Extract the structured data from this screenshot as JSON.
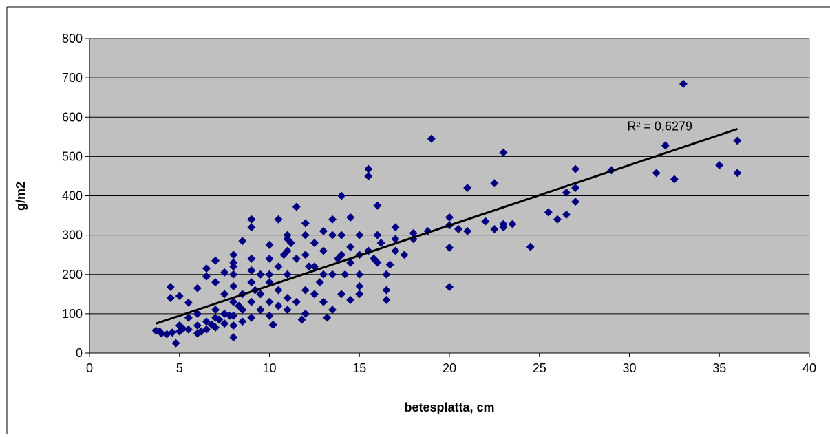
{
  "chart_data": {
    "type": "scatter",
    "xlabel": "betesplatta, cm",
    "ylabel": "g/m2",
    "xlim": [
      0,
      40
    ],
    "ylim": [
      0,
      800
    ],
    "xticks": [
      0,
      5,
      10,
      15,
      20,
      25,
      30,
      35,
      40
    ],
    "yticks": [
      0,
      100,
      200,
      300,
      400,
      500,
      600,
      700,
      800
    ],
    "grid": true,
    "color": "#000080",
    "background": "#c0c0c0",
    "x": [
      3.7,
      4,
      4.5,
      4.5,
      5,
      4.8,
      5,
      5.5,
      6,
      6.5,
      6.5,
      7,
      7,
      7.5,
      8,
      8,
      8,
      8.5,
      9,
      9,
      9,
      10,
      10,
      10.5,
      11,
      11,
      11.5,
      12,
      12,
      12.5,
      13,
      13.5,
      14,
      14.5,
      15.5,
      15.5,
      16,
      17,
      18,
      19,
      20,
      20,
      20,
      20,
      20.5,
      21,
      21,
      22,
      22.5,
      22.5,
      23,
      23,
      23,
      23.5,
      24.5,
      25.5,
      26,
      26.5,
      26.5,
      27,
      27,
      27,
      29,
      31.5,
      32,
      32.5,
      33,
      35,
      36,
      36,
      5,
      5.5,
      5.5,
      6,
      6,
      6,
      6.5,
      6.5,
      7,
      7,
      7,
      7.5,
      7.5,
      7.5,
      8,
      8,
      8,
      8,
      8,
      8.5,
      8.5,
      8.5,
      9,
      9,
      9,
      9.5,
      9.5,
      9.5,
      10,
      10,
      10,
      10.2,
      10.5,
      10.5,
      10.5,
      11,
      11,
      11,
      11.5,
      11.5,
      11.8,
      12,
      12,
      12,
      12.5,
      12.5,
      13,
      13,
      13,
      13.2,
      13.5,
      13.5,
      13.5,
      14,
      14,
      14,
      14.5,
      14.5,
      14.5,
      15,
      15,
      15,
      15,
      15,
      15.5,
      16,
      16,
      16.5,
      16.5,
      16.5,
      16.7,
      17,
      17,
      17.5,
      18,
      18.8,
      3.9,
      4.3,
      4.6,
      5.2,
      6.2,
      6.8,
      7.2,
      7.8,
      8.3,
      9.2,
      10.8,
      11.2,
      12.2,
      12.8,
      13.8,
      14.2,
      15.8,
      16.2,
      9,
      8,
      10,
      11
    ],
    "y": [
      57,
      50,
      168,
      140,
      145,
      25,
      70,
      128,
      165,
      215,
      195,
      235,
      180,
      205,
      250,
      230,
      200,
      285,
      340,
      320,
      240,
      275,
      240,
      340,
      300,
      260,
      372,
      330,
      300,
      280,
      310,
      340,
      400,
      345,
      468,
      450,
      375,
      320,
      305,
      545,
      345,
      325,
      268,
      168,
      315,
      420,
      310,
      335,
      432,
      315,
      510,
      328,
      320,
      328,
      270,
      358,
      340,
      408,
      352,
      468,
      420,
      385,
      465,
      458,
      528,
      442,
      685,
      478,
      540,
      458,
      55,
      60,
      90,
      50,
      70,
      100,
      60,
      80,
      65,
      90,
      110,
      75,
      100,
      150,
      40,
      70,
      95,
      130,
      170,
      80,
      110,
      150,
      90,
      130,
      180,
      110,
      150,
      200,
      95,
      130,
      180,
      72,
      120,
      160,
      220,
      110,
      140,
      200,
      130,
      240,
      85,
      100,
      160,
      250,
      150,
      220,
      130,
      200,
      260,
      90,
      110,
      200,
      300,
      150,
      250,
      300,
      135,
      230,
      270,
      150,
      170,
      200,
      250,
      300,
      260,
      230,
      300,
      135,
      160,
      200,
      225,
      260,
      290,
      250,
      290,
      310,
      55,
      48,
      52,
      62,
      55,
      72,
      85,
      95,
      120,
      160,
      250,
      280,
      220,
      180,
      240,
      200,
      240,
      280,
      210,
      220,
      200,
      290
    ],
    "trendline": {
      "x": [
        3.7,
        36
      ],
      "y": [
        75,
        570
      ],
      "label": "R² = 0,6279",
      "color": "#000000"
    }
  }
}
